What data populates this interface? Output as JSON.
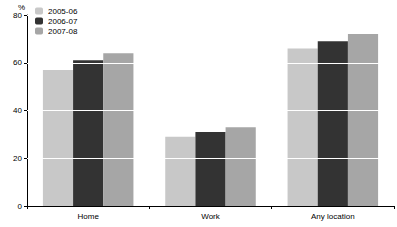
{
  "chart_data": {
    "type": "bar",
    "ylabel": "%",
    "categories": [
      "Home",
      "Work",
      "Any location"
    ],
    "series": [
      {
        "name": "2005-06",
        "color": "#c8c8c8",
        "values": [
          57,
          29,
          66
        ]
      },
      {
        "name": "2006-07",
        "color": "#333333",
        "values": [
          61,
          31,
          69
        ]
      },
      {
        "name": "2007-08",
        "color": "#a6a6a6",
        "values": [
          64,
          33,
          72
        ]
      }
    ],
    "ylim": [
      0,
      80
    ],
    "yticks": [
      0,
      20,
      40,
      60,
      80
    ],
    "grid": true,
    "legend": "top-left"
  }
}
